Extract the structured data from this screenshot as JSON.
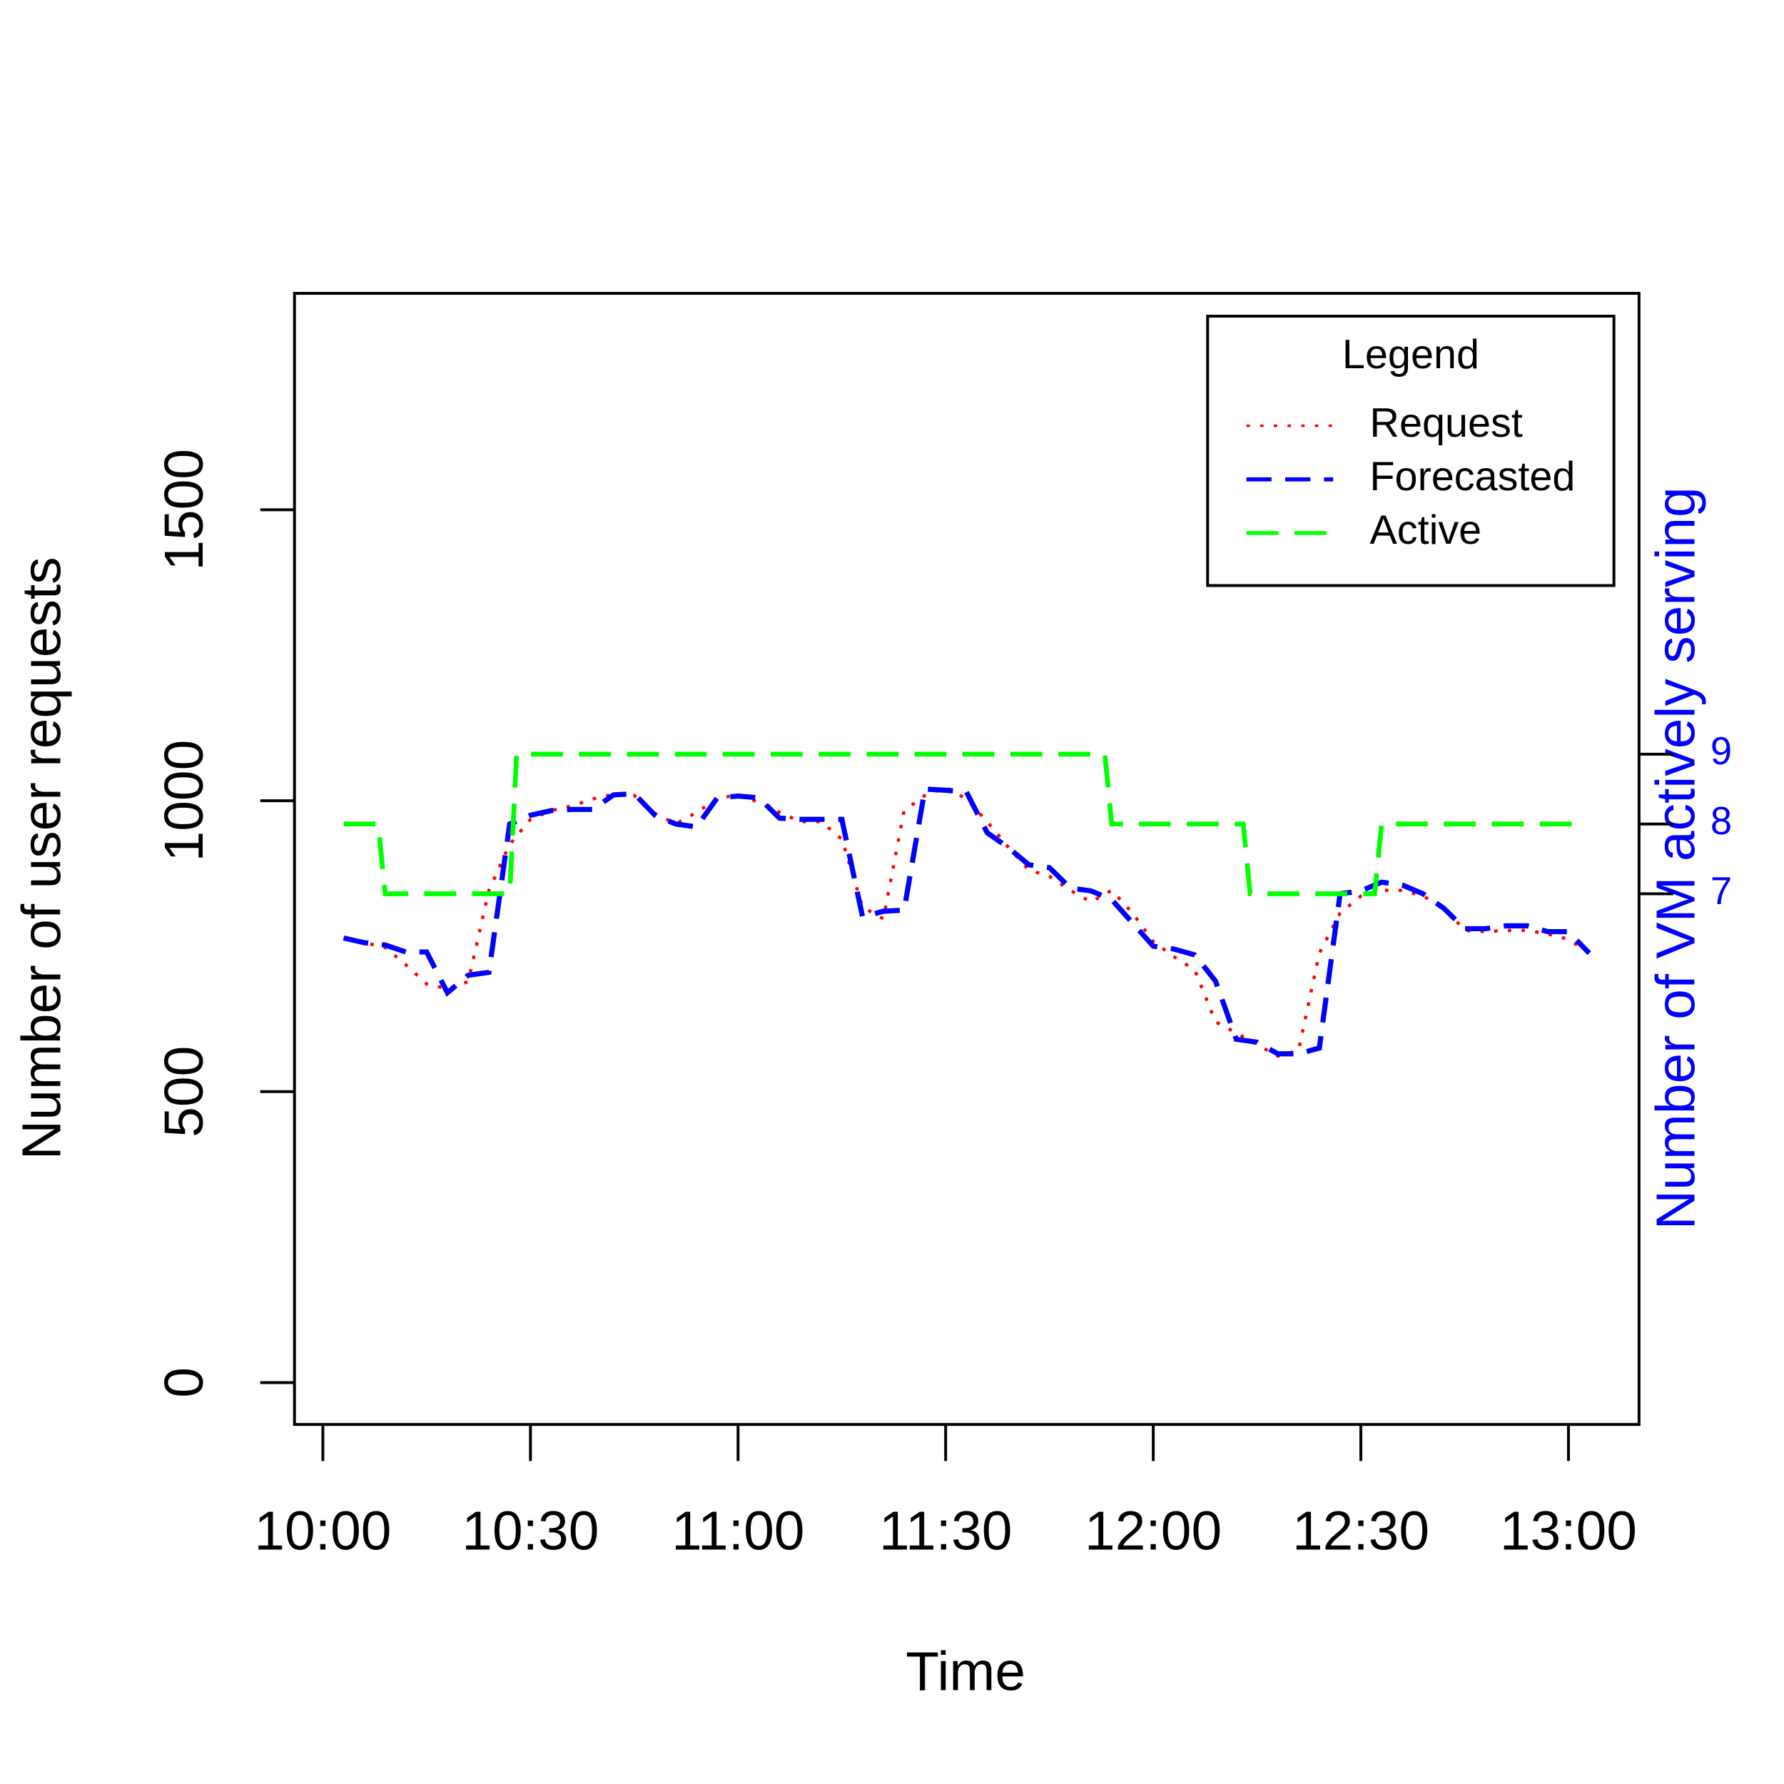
{
  "chart_data": {
    "type": "line",
    "xlabel": "Time",
    "ylabel": "Number of user requests",
    "y2label": "Number of VM actively serving",
    "x": [
      603,
      606,
      609,
      612,
      615,
      618,
      621,
      624,
      627,
      630,
      633,
      636,
      639,
      642,
      645,
      648,
      651,
      654,
      657,
      660,
      663,
      666,
      669,
      672,
      675,
      678,
      681,
      684,
      687,
      690,
      693,
      696,
      699,
      702,
      705,
      708,
      711,
      714,
      717,
      720,
      723,
      726,
      729,
      732,
      735,
      738,
      741,
      744,
      747,
      750,
      753,
      756,
      759,
      762,
      765,
      768,
      771,
      774,
      777,
      780,
      783
    ],
    "series": [
      {
        "name": "Request",
        "color": "#ff0000",
        "style": "dotted",
        "values": [
          764,
          756,
          748,
          718,
          685,
          677,
          689,
          846,
          925,
          968,
          983,
          991,
          1003,
          1011,
          1009,
          978,
          960,
          980,
          1003,
          1011,
          997,
          980,
          964,
          964,
          934,
          817,
          797,
          983,
          1009,
          1023,
          1003,
          964,
          921,
          881,
          870,
          846,
          826,
          846,
          807,
          758,
          732,
          709,
          620,
          601,
          581,
          561,
          571,
          738,
          807,
          836,
          846,
          846,
          836,
          817,
          777,
          775,
          777,
          777,
          771,
          762,
          738
        ]
      },
      {
        "name": "Forecasted",
        "color": "#0000ff",
        "style": "dashed",
        "values": [
          764,
          756,
          752,
          740,
          740,
          670,
          700,
          705,
          960,
          975,
          983,
          985,
          985,
          1010,
          1012,
          975,
          960,
          955,
          1005,
          1008,
          1005,
          970,
          968,
          968,
          968,
          800,
          810,
          812,
          1020,
          1018,
          1015,
          945,
          920,
          890,
          885,
          850,
          845,
          830,
          790,
          750,
          745,
          735,
          690,
          590,
          585,
          565,
          565,
          575,
          840,
          845,
          860,
          855,
          840,
          815,
          780,
          780,
          785,
          785,
          775,
          775,
          738
        ]
      },
      {
        "name": "Active",
        "color": "#00ff00",
        "style": "longdash",
        "axis": "y2",
        "x": [
          603,
          608,
          609,
          627,
          628,
          713,
          714,
          733,
          734,
          752,
          753,
          782
        ],
        "values": [
          8,
          8,
          7,
          7,
          9,
          9,
          8,
          8,
          7,
          7,
          8,
          8
        ]
      }
    ],
    "xlim": [
      595.9,
      790.2
    ],
    "xticks": [
      {
        "value": 600,
        "label": "10:00"
      },
      {
        "value": 630,
        "label": "10:30"
      },
      {
        "value": 660,
        "label": "11:00"
      },
      {
        "value": 690,
        "label": "11:30"
      },
      {
        "value": 720,
        "label": "12:00"
      },
      {
        "value": 750,
        "label": "12:30"
      },
      {
        "value": 780,
        "label": "13:00"
      }
    ],
    "ylim": [
      -72,
      1872
    ],
    "yticks": [
      0,
      500,
      1000,
      1500
    ],
    "y2lim": [
      -0.6,
      15.6
    ],
    "y2ticks": [
      7,
      8,
      9
    ],
    "y2color": "#0000ff",
    "legend_title": "Legend",
    "legend": "topright"
  }
}
